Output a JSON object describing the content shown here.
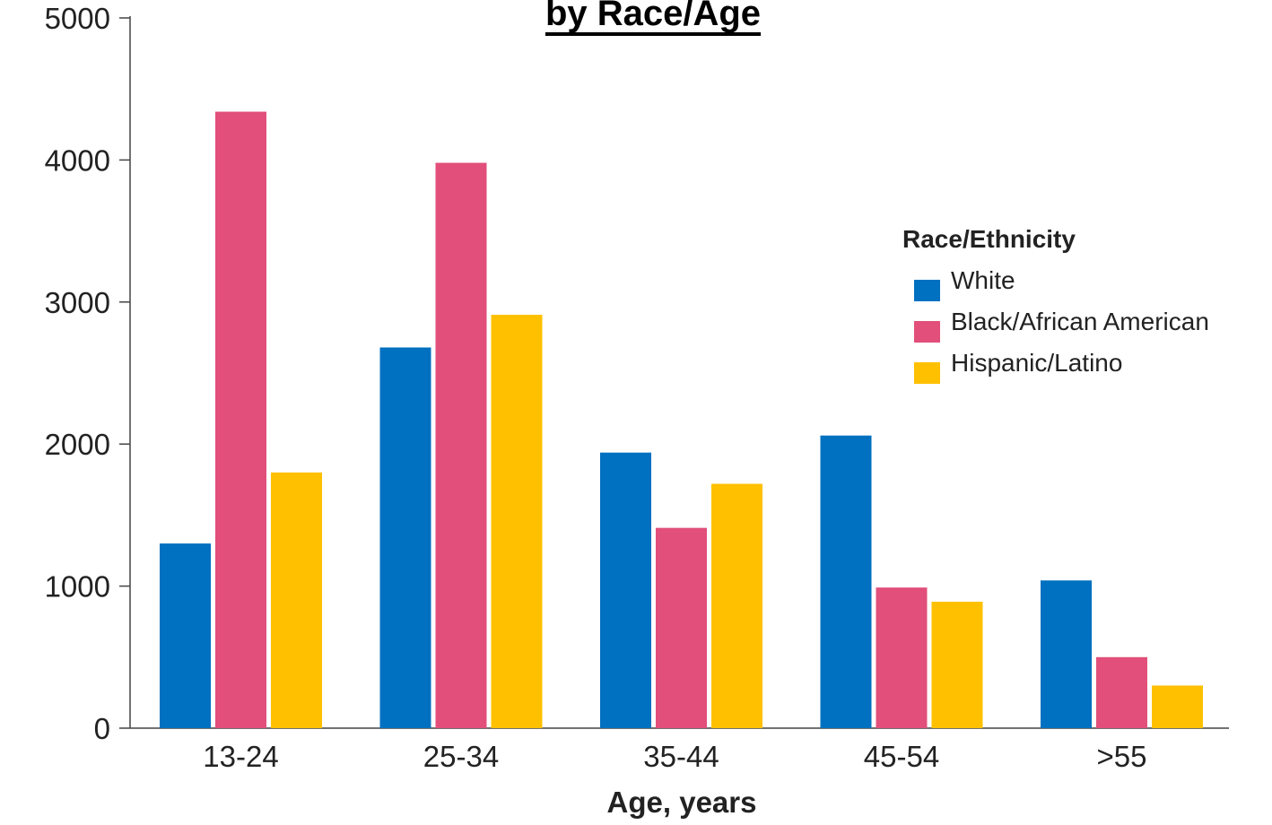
{
  "chart_data": {
    "type": "bar",
    "title": "by Race/Age",
    "xlabel": "Age, years",
    "ylabel": "",
    "categories": [
      "13-24",
      "25-34",
      "35-44",
      "45-54",
      ">55"
    ],
    "series": [
      {
        "name": "White",
        "values": [
          1300,
          2680,
          1940,
          2060,
          1040
        ],
        "color": "#0070C0"
      },
      {
        "name": "Black/African American",
        "values": [
          4340,
          3980,
          1410,
          990,
          500
        ],
        "color": "#E14F7A"
      },
      {
        "name": "Hispanic/Latino",
        "values": [
          1800,
          2910,
          1720,
          890,
          300
        ],
        "color": "#FFC000"
      }
    ],
    "ylim": [
      0,
      5000
    ],
    "yticks": [
      0,
      1000,
      2000,
      3000,
      4000,
      5000
    ],
    "grid": false,
    "legend": {
      "title": "Race/Ethnicity",
      "position": "right"
    }
  }
}
